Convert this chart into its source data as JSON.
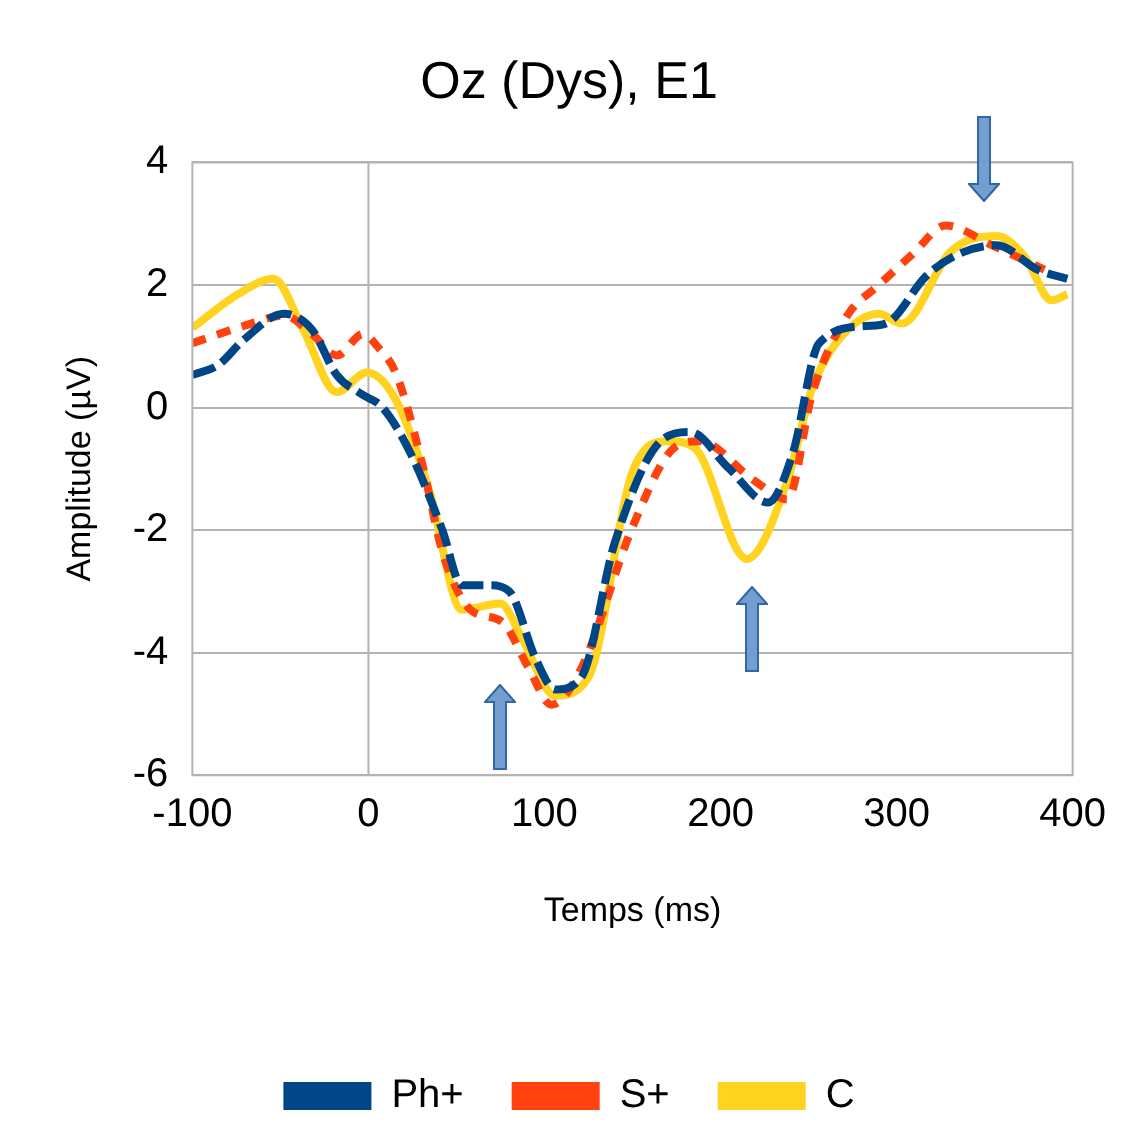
{
  "chart_data": {
    "type": "line",
    "title": "Oz (Dys), E1",
    "xlabel": "Temps (ms)",
    "ylabel": "Amplitude (µV)",
    "xlim": [
      -100,
      400
    ],
    "xticks": [
      -100,
      0,
      100,
      200,
      300,
      400
    ],
    "ylim": [
      -6,
      4
    ],
    "yticks": [
      -6,
      -4,
      -2,
      0,
      2,
      4
    ],
    "grid": "y",
    "legend": "bottom",
    "marker": "none",
    "ref_lines": [
      {
        "axis": "x",
        "value": 0,
        "color": "#b3b3b3"
      }
    ],
    "series": [
      {
        "name": "Ph+",
        "color": "#004586",
        "line_style": "dashed",
        "x": [
          -100,
          -85,
          -71,
          -48,
          -32,
          -18,
          -4,
          8,
          24,
          42,
          53,
          69,
          80,
          95,
          106,
          121,
          140,
          166,
          183,
          204,
          227,
          241,
          256,
          283,
          294,
          317,
          335,
          357,
          380,
          397
        ],
        "values": [
          0.53,
          0.7,
          1.1,
          1.53,
          1.27,
          0.53,
          0.22,
          0,
          -0.75,
          -2.0,
          -2.9,
          -2.9,
          -3.0,
          -4.1,
          -4.6,
          -4.4,
          -2.2,
          -0.55,
          -0.4,
          -0.97,
          -1.55,
          -0.75,
          1.05,
          1.33,
          1.37,
          2.15,
          2.5,
          2.65,
          2.25,
          2.1
        ]
      },
      {
        "name": "S+",
        "color": "#ff420e",
        "line_style": "dotted",
        "x": [
          -100,
          -71,
          -48,
          -32,
          -18,
          -3,
          5,
          16,
          31,
          42,
          58,
          76,
          91,
          104,
          121,
          150,
          174,
          188,
          219,
          238,
          252,
          272,
          290,
          309,
          328,
          354,
          384
        ],
        "values": [
          1.05,
          1.33,
          1.5,
          1.2,
          0.85,
          1.2,
          1.0,
          0.53,
          -0.97,
          -2.35,
          -3.3,
          -3.5,
          -4.25,
          -4.85,
          -4.25,
          -1.95,
          -0.65,
          -0.55,
          -1.19,
          -1.5,
          0.22,
          1.5,
          2.0,
          2.5,
          2.97,
          2.65,
          2.25
        ]
      },
      {
        "name": "C",
        "color": "#ffd320",
        "line_style": "solid",
        "x": [
          -100,
          -74,
          -54,
          -37,
          -18,
          -1,
          16,
          35,
          53,
          75,
          87,
          106,
          125,
          150,
          170,
          185,
          215,
          238,
          252,
          267,
          290,
          303,
          331,
          357,
          373,
          388,
          397
        ],
        "values": [
          1.3,
          1.85,
          2.1,
          1.27,
          0.25,
          0.57,
          0.1,
          -1.4,
          -3.3,
          -3.2,
          -3.75,
          -4.7,
          -4.4,
          -1.05,
          -0.55,
          -0.65,
          -2.47,
          -1.19,
          0.31,
          1.1,
          1.53,
          1.37,
          2.55,
          2.8,
          2.45,
          1.75,
          1.85
        ]
      }
    ]
  }
}
